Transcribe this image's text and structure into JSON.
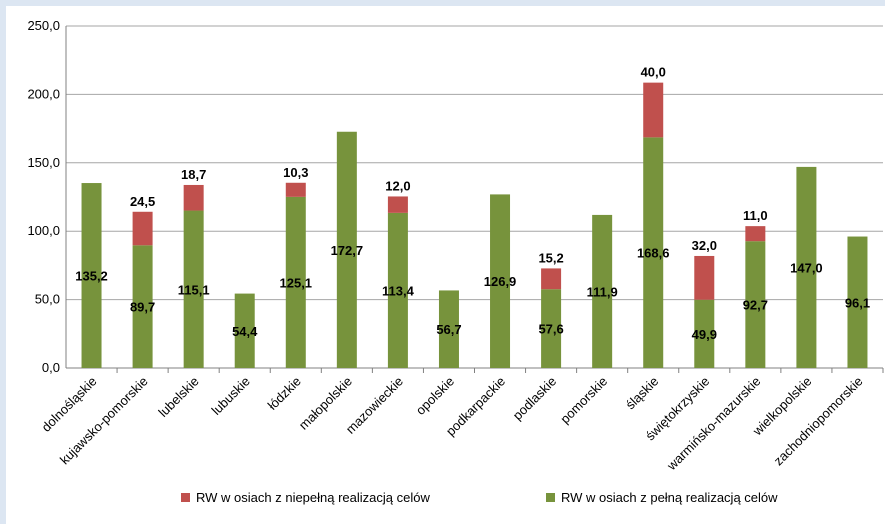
{
  "chart_data": {
    "type": "bar",
    "stacked": true,
    "categories": [
      "dolnośląskie",
      "kujawsko-pomorskie",
      "lubelskie",
      "lubuskie",
      "łódzkie",
      "małopolskie",
      "mazowieckie",
      "opolskie",
      "podkarpackie",
      "podlaskie",
      "pomorskie",
      "śląskie",
      "świętokrzyskie",
      "warmińsko-mazurskie",
      "wielkopolskie",
      "zachodniopomorskie"
    ],
    "series": [
      {
        "name": "RW w osiach z pełną realizacją celów",
        "color": "#77933c",
        "values": [
          135.2,
          89.7,
          115.1,
          54.4,
          125.1,
          172.7,
          113.4,
          56.7,
          126.9,
          57.6,
          111.9,
          168.6,
          49.9,
          92.7,
          147.0,
          96.1
        ],
        "labels": [
          "135,2",
          "89,7",
          "115,1",
          "54,4",
          "125,1",
          "172,7",
          "113,4",
          "56,7",
          "126,9",
          "57,6",
          "111,9",
          "168,6",
          "49,9",
          "92,7",
          "147,0",
          "96,1"
        ]
      },
      {
        "name": "RW w osiach z niepełną realizacją celów",
        "color": "#c0504d",
        "values": [
          0,
          24.5,
          18.7,
          0,
          10.3,
          0,
          12.0,
          0,
          0,
          15.2,
          0,
          40.0,
          32.0,
          11.0,
          0,
          0
        ],
        "labels": [
          "",
          "24,5",
          "18,7",
          "",
          "10,3",
          "",
          "12,0",
          "",
          "",
          "15,2",
          "",
          "40,0",
          "32,0",
          "11,0",
          "",
          ""
        ]
      }
    ],
    "ylim": [
      0,
      250
    ],
    "yticks": [
      0,
      50,
      100,
      150,
      200,
      250
    ],
    "ytick_labels": [
      "0,0",
      "50,0",
      "100,0",
      "150,0",
      "200,0",
      "250,0"
    ],
    "grid": true,
    "legend_position": "bottom",
    "legend": [
      "RW w osiach z niepełną realizacją celów",
      "RW w osiach z pełną realizacją celów"
    ]
  }
}
